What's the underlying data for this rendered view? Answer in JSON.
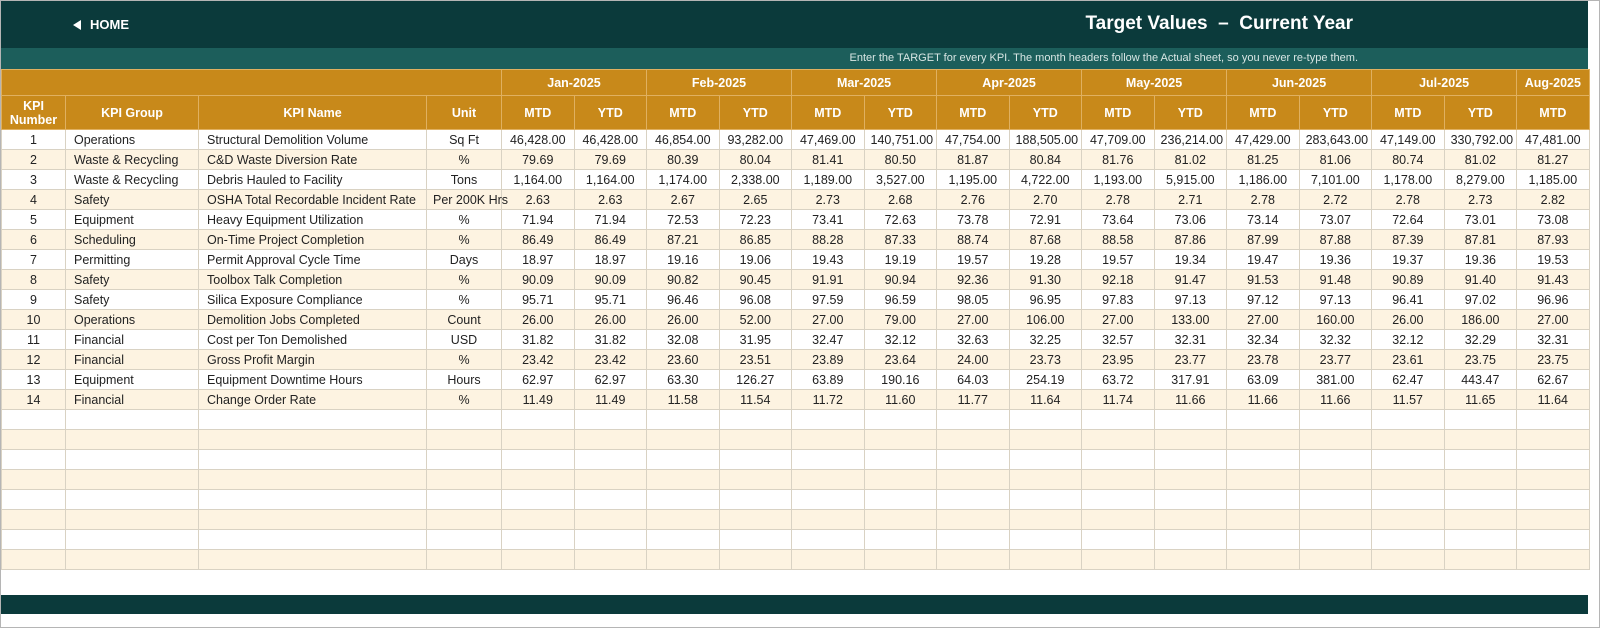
{
  "header": {
    "home": "HOME",
    "title": "Target Values  –  Current Year",
    "note": "Enter the TARGET for every KPI. The month headers follow the Actual sheet, so you never re-type them."
  },
  "table": {
    "columns": [
      "KPI Number",
      "KPI Group",
      "KPI Name",
      "Unit"
    ],
    "months": [
      "Jan-2025",
      "Feb-2025",
      "Mar-2025",
      "Apr-2025",
      "May-2025",
      "Jun-2025",
      "Jul-2025",
      "Aug-2025"
    ],
    "sub_headers": [
      "MTD",
      "YTD",
      "MTD",
      "YTD",
      "MTD",
      "YTD",
      "MTD",
      "YTD",
      "MTD",
      "YTD",
      "MTD",
      "YTD",
      "MTD",
      "YTD",
      "MTD"
    ],
    "rows": [
      [
        "1",
        "Operations",
        "Structural Demolition Volume",
        "Sq Ft",
        "46,428.00",
        "46,428.00",
        "46,854.00",
        "93,282.00",
        "47,469.00",
        "140,751.00",
        "47,754.00",
        "188,505.00",
        "47,709.00",
        "236,214.00",
        "47,429.00",
        "283,643.00",
        "47,149.00",
        "330,792.00",
        "47,481.00"
      ],
      [
        "2",
        "Waste & Recycling",
        "C&D Waste Diversion Rate",
        "%",
        "79.69",
        "79.69",
        "80.39",
        "80.04",
        "81.41",
        "80.50",
        "81.87",
        "80.84",
        "81.76",
        "81.02",
        "81.25",
        "81.06",
        "80.74",
        "81.02",
        "81.27"
      ],
      [
        "3",
        "Waste & Recycling",
        "Debris Hauled to Facility",
        "Tons",
        "1,164.00",
        "1,164.00",
        "1,174.00",
        "2,338.00",
        "1,189.00",
        "3,527.00",
        "1,195.00",
        "4,722.00",
        "1,193.00",
        "5,915.00",
        "1,186.00",
        "7,101.00",
        "1,178.00",
        "8,279.00",
        "1,185.00"
      ],
      [
        "4",
        "Safety",
        "OSHA Total Recordable Incident Rate",
        "Per 200K Hrs",
        "2.63",
        "2.63",
        "2.67",
        "2.65",
        "2.73",
        "2.68",
        "2.76",
        "2.70",
        "2.78",
        "2.71",
        "2.78",
        "2.72",
        "2.78",
        "2.73",
        "2.82"
      ],
      [
        "5",
        "Equipment",
        "Heavy Equipment Utilization",
        "%",
        "71.94",
        "71.94",
        "72.53",
        "72.23",
        "73.41",
        "72.63",
        "73.78",
        "72.91",
        "73.64",
        "73.06",
        "73.14",
        "73.07",
        "72.64",
        "73.01",
        "73.08"
      ],
      [
        "6",
        "Scheduling",
        "On-Time Project Completion",
        "%",
        "86.49",
        "86.49",
        "87.21",
        "86.85",
        "88.28",
        "87.33",
        "88.74",
        "87.68",
        "88.58",
        "87.86",
        "87.99",
        "87.88",
        "87.39",
        "87.81",
        "87.93"
      ],
      [
        "7",
        "Permitting",
        "Permit Approval Cycle Time",
        "Days",
        "18.97",
        "18.97",
        "19.16",
        "19.06",
        "19.43",
        "19.19",
        "19.57",
        "19.28",
        "19.57",
        "19.34",
        "19.47",
        "19.36",
        "19.37",
        "19.36",
        "19.53"
      ],
      [
        "8",
        "Safety",
        "Toolbox Talk Completion",
        "%",
        "90.09",
        "90.09",
        "90.82",
        "90.45",
        "91.91",
        "90.94",
        "92.36",
        "91.30",
        "92.18",
        "91.47",
        "91.53",
        "91.48",
        "90.89",
        "91.40",
        "91.43"
      ],
      [
        "9",
        "Safety",
        "Silica Exposure Compliance",
        "%",
        "95.71",
        "95.71",
        "96.46",
        "96.08",
        "97.59",
        "96.59",
        "98.05",
        "96.95",
        "97.83",
        "97.13",
        "97.12",
        "97.13",
        "96.41",
        "97.02",
        "96.96"
      ],
      [
        "10",
        "Operations",
        "Demolition Jobs Completed",
        "Count",
        "26.00",
        "26.00",
        "26.00",
        "52.00",
        "27.00",
        "79.00",
        "27.00",
        "106.00",
        "27.00",
        "133.00",
        "27.00",
        "160.00",
        "26.00",
        "186.00",
        "27.00"
      ],
      [
        "11",
        "Financial",
        "Cost per Ton Demolished",
        "USD",
        "31.82",
        "31.82",
        "32.08",
        "31.95",
        "32.47",
        "32.12",
        "32.63",
        "32.25",
        "32.57",
        "32.31",
        "32.34",
        "32.32",
        "32.12",
        "32.29",
        "32.31"
      ],
      [
        "12",
        "Financial",
        "Gross Profit Margin",
        "%",
        "23.42",
        "23.42",
        "23.60",
        "23.51",
        "23.89",
        "23.64",
        "24.00",
        "23.73",
        "23.95",
        "23.77",
        "23.78",
        "23.77",
        "23.61",
        "23.75",
        "23.75"
      ],
      [
        "13",
        "Equipment",
        "Equipment Downtime Hours",
        "Hours",
        "62.97",
        "62.97",
        "63.30",
        "126.27",
        "63.89",
        "190.16",
        "64.03",
        "254.19",
        "63.72",
        "317.91",
        "63.09",
        "381.00",
        "62.47",
        "443.47",
        "62.67"
      ],
      [
        "14",
        "Financial",
        "Change Order Rate",
        "%",
        "11.49",
        "11.49",
        "11.58",
        "11.54",
        "11.72",
        "11.60",
        "11.77",
        "11.64",
        "11.74",
        "11.66",
        "11.66",
        "11.66",
        "11.57",
        "11.65",
        "11.64"
      ]
    ]
  }
}
